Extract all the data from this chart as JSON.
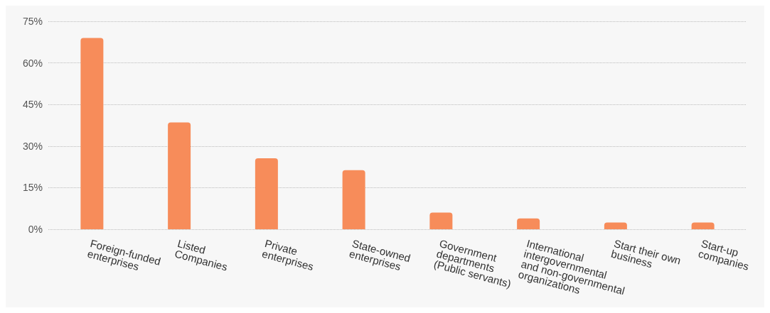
{
  "chart_data": {
    "type": "bar",
    "categories": [
      "Foreign-funded\nenterprises",
      "Listed\nCompanies",
      "Private\nenterprises",
      "State-owned\nenterprises",
      "Government\ndepartments\n(Public servants)",
      "International\nintergovernmental\nand non-governmental\norganizations",
      "Start their own\nbusiness",
      "Start-up\ncompanies"
    ],
    "values": [
      69,
      38.5,
      25.6,
      21.3,
      6,
      3.9,
      2.4,
      2.4
    ],
    "color": "#f78c5a",
    "ylim": [
      0,
      75
    ],
    "yticks": [
      {
        "value": 0,
        "label": "0%"
      },
      {
        "value": 15,
        "label": "15%"
      },
      {
        "value": 30,
        "label": "30%"
      },
      {
        "value": 45,
        "label": "45%"
      },
      {
        "value": 60,
        "label": "60%"
      },
      {
        "value": 75,
        "label": "75%"
      }
    ],
    "grid": "y"
  }
}
